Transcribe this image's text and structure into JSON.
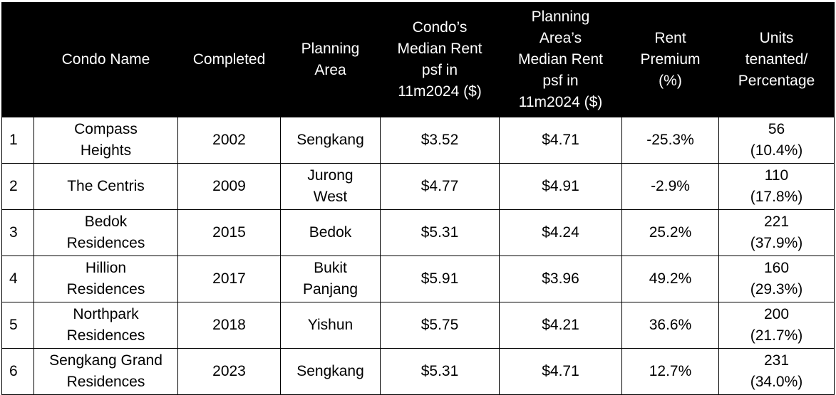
{
  "table": {
    "headers": [
      "",
      "Condo Name",
      "Completed",
      "Planning\nArea",
      "Condo’s\nMedian Rent\npsf in\n11m2024 ($)",
      "Planning\nArea’s\nMedian Rent\npsf in\n11m2024 ($)",
      "Rent\nPremium\n(%)",
      "Units\ntenanted/\nPercentage"
    ],
    "rows": [
      {
        "no": "1",
        "name": "Compass\nHeights",
        "completed": "2002",
        "area": "Sengkang",
        "condo_rent": "$3.52",
        "area_rent": "$4.71",
        "premium": "-25.3%",
        "units": "56\n(10.4%)"
      },
      {
        "no": "2",
        "name": "The Centris",
        "completed": "2009",
        "area": "Jurong\nWest",
        "condo_rent": "$4.77",
        "area_rent": "$4.91",
        "premium": "-2.9%",
        "units": "110\n(17.8%)"
      },
      {
        "no": "3",
        "name": "Bedok\nResidences",
        "completed": "2015",
        "area": "Bedok",
        "condo_rent": "$5.31",
        "area_rent": "$4.24",
        "premium": "25.2%",
        "units": "221\n(37.9%)"
      },
      {
        "no": "4",
        "name": "Hillion\nResidences",
        "completed": "2017",
        "area": "Bukit\nPanjang",
        "condo_rent": "$5.91",
        "area_rent": "$3.96",
        "premium": "49.2%",
        "units": "160\n(29.3%)"
      },
      {
        "no": "5",
        "name": "Northpark\nResidences",
        "completed": "2018",
        "area": "Yishun",
        "condo_rent": "$5.75",
        "area_rent": "$4.21",
        "premium": "36.6%",
        "units": "200\n(21.7%)"
      },
      {
        "no": "6",
        "name": "Sengkang Grand\nResidences",
        "completed": "2023",
        "area": "Sengkang",
        "condo_rent": "$5.31",
        "area_rent": "$4.71",
        "premium": "12.7%",
        "units": "231\n(34.0%)"
      }
    ]
  }
}
